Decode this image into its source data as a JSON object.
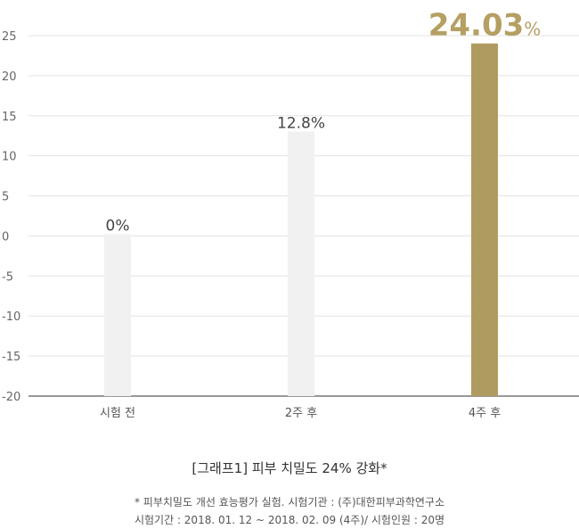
{
  "chart_data": {
    "type": "bar",
    "categories": [
      "시험 전",
      "2주 후",
      "4주 후"
    ],
    "values": [
      0,
      12.8,
      24.03
    ],
    "data_labels": [
      "0%",
      "12.8%",
      "24.03"
    ],
    "highlight_suffix": "%",
    "ylim": [
      -20,
      25
    ],
    "yticks": [
      25,
      20,
      15,
      10,
      5,
      0,
      -5,
      -10,
      -15,
      -20
    ],
    "grid": true,
    "colors": {
      "bar": "#f1f1f1",
      "highlight": "#b7a266",
      "highlight_text": "#b59f62",
      "axis": "#333333",
      "grid": "#e3e3e3"
    },
    "title": "",
    "xlabel": "",
    "ylabel": ""
  },
  "caption": {
    "title": "[그래프1] 피부 치밀도 24% 강화*",
    "note1": "* 피부치밀도 개선 효능평가 실험. 시험기관 : (주)대한피부과학연구소",
    "note2": "시험기간 : 2018. 01. 12 ~ 2018. 02. 09 (4주)/ 시험인원 : 20명"
  }
}
